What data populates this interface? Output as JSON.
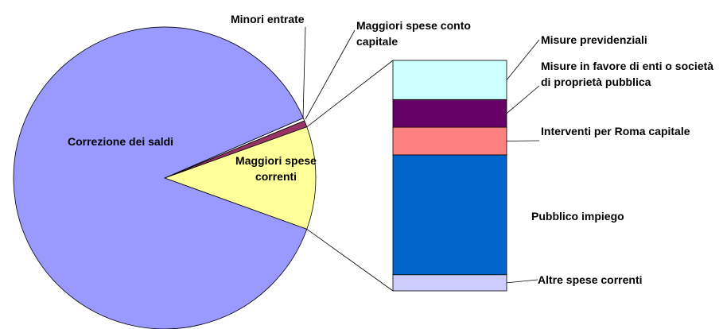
{
  "chart_data": {
    "type": "pie",
    "categories": [
      "Maggiori spese correnti",
      "Maggiori spese conto capitale",
      "Minori entrate",
      "Correzione dei saldi"
    ],
    "values": [
      11,
      0.7,
      0.3,
      88
    ],
    "colors": [
      "#ffff99",
      "#993366",
      "#ffffff",
      "#9999ff"
    ],
    "breakdown": {
      "categories": [
        "Altre spese correnti",
        "Pubblico impiego",
        "Interventi per Roma capitale",
        "Misure in favore di enti o società di proprietà pubblica",
        "Misure previdenziali"
      ],
      "values": [
        7,
        52,
        12,
        12,
        17
      ],
      "colors": [
        "#ccccff",
        "#0066cc",
        "#ff8080",
        "#660066",
        "#ccffff"
      ]
    }
  }
}
